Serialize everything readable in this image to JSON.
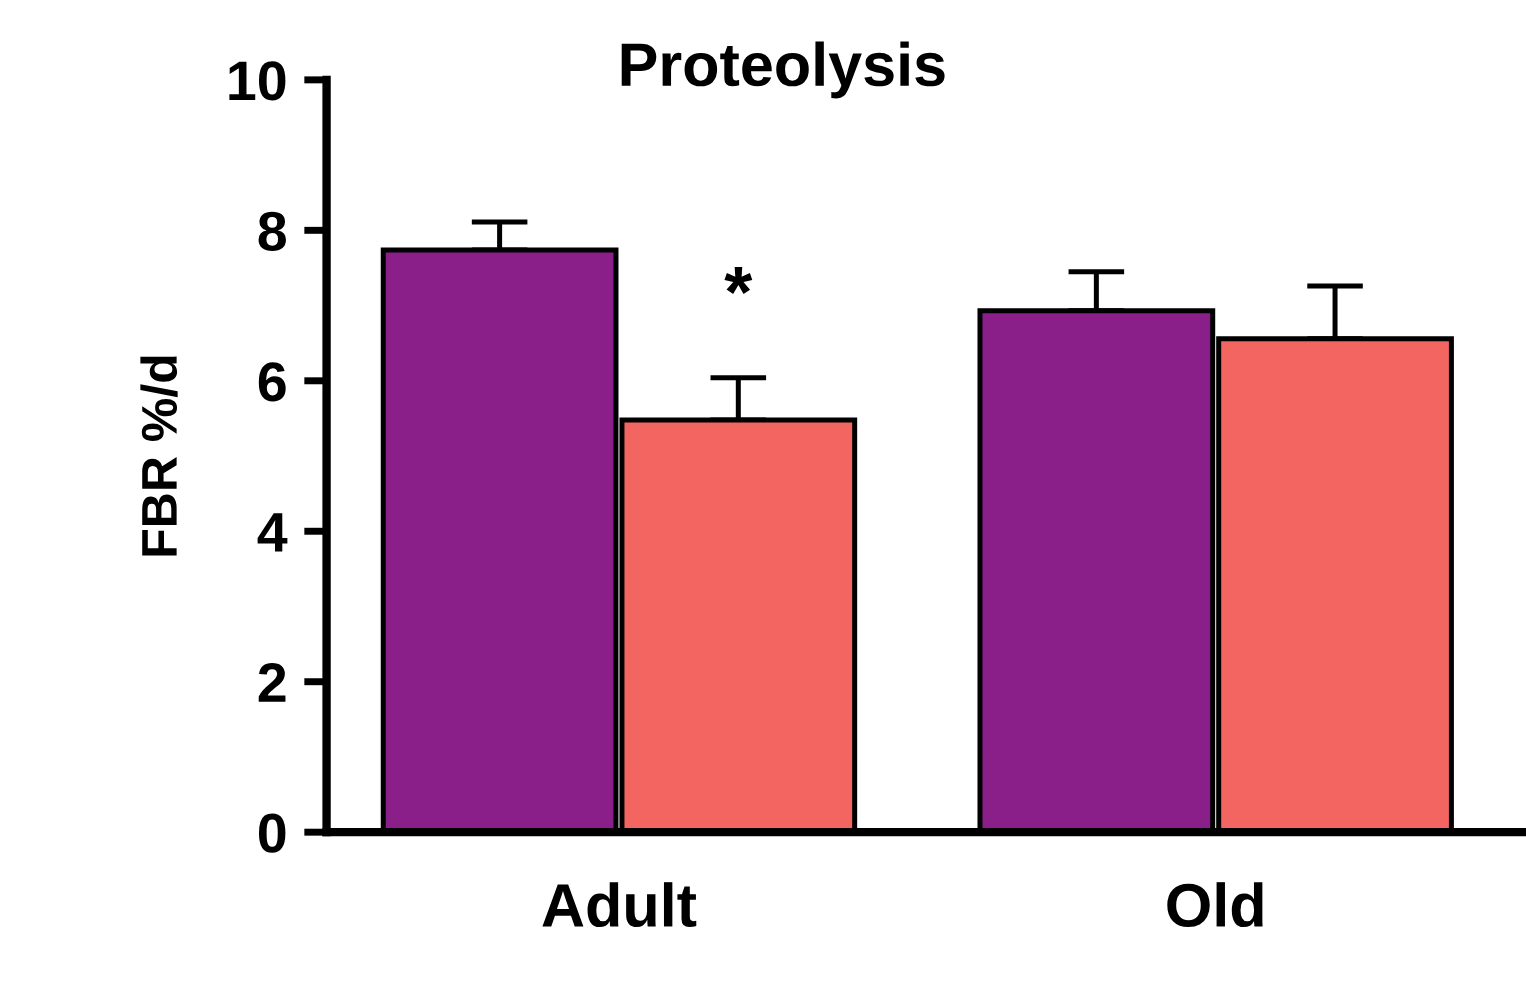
{
  "chart_data": {
    "type": "bar",
    "title": "Proteolysis",
    "ylabel": "FBR %/d",
    "categories": [
      "Adult",
      "Old"
    ],
    "series": [
      {
        "color": "#8b1f8a",
        "values": [
          7.74,
          6.93
        ],
        "errors": [
          [
            7.74,
            8.11
          ],
          [
            6.93,
            7.45
          ]
        ]
      },
      {
        "color": "#f26560",
        "values": [
          5.48,
          6.56
        ],
        "errors": [
          [
            5.48,
            6.04
          ],
          [
            6.56,
            7.26
          ]
        ]
      }
    ],
    "annotations": [
      {
        "text": "*",
        "x": "Adult",
        "y": 7.1
      }
    ],
    "ylim": [
      0,
      10
    ],
    "yticks": [
      0,
      2,
      4,
      6,
      8,
      10
    ],
    "grid": false,
    "legend": false
  }
}
